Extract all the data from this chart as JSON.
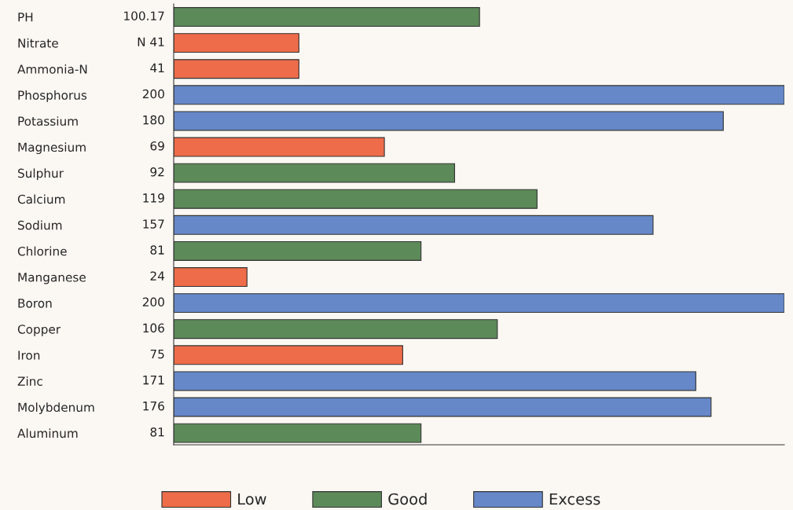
{
  "chart_data": {
    "type": "bar",
    "orientation": "horizontal",
    "categories": [
      "PH",
      "Nitrate",
      "Ammonia-N",
      "Phosphorus",
      "Potassium",
      "Magnesium",
      "Sulphur",
      "Calcium",
      "Sodium",
      "Chlorine",
      "Manganese",
      "Boron",
      "Copper",
      "Iron",
      "Zinc",
      "Molybdenum",
      "Aluminum"
    ],
    "series": [
      {
        "name": "Low",
        "color": "#ee6c4a",
        "values": [
          null,
          41,
          41,
          null,
          null,
          69,
          null,
          null,
          null,
          null,
          24,
          null,
          null,
          75,
          null,
          null,
          null
        ],
        "value_labels": [
          null,
          "N 41",
          "41",
          null,
          null,
          "69",
          null,
          null,
          null,
          null,
          "24",
          null,
          null,
          "75",
          null,
          null,
          null
        ]
      },
      {
        "name": "Good",
        "color": "#5c8a59",
        "values": [
          100.17,
          null,
          null,
          null,
          null,
          null,
          92,
          119,
          null,
          81,
          null,
          null,
          106,
          null,
          null,
          null,
          81
        ],
        "value_labels": [
          "100.17",
          null,
          null,
          null,
          null,
          null,
          "92",
          "119",
          null,
          "81",
          null,
          null,
          "106",
          null,
          null,
          null,
          "81"
        ]
      },
      {
        "name": "Excess",
        "color": "#6688c8",
        "values": [
          null,
          null,
          null,
          200,
          180,
          null,
          null,
          null,
          157,
          null,
          null,
          200,
          null,
          null,
          171,
          176,
          null
        ],
        "value_labels": [
          null,
          null,
          null,
          "200",
          "180",
          null,
          null,
          null,
          "157",
          null,
          null,
          "200",
          null,
          null,
          "171",
          "176",
          null
        ]
      }
    ],
    "xlim": [
      0,
      200
    ],
    "grid": false,
    "legend": "bottom"
  }
}
